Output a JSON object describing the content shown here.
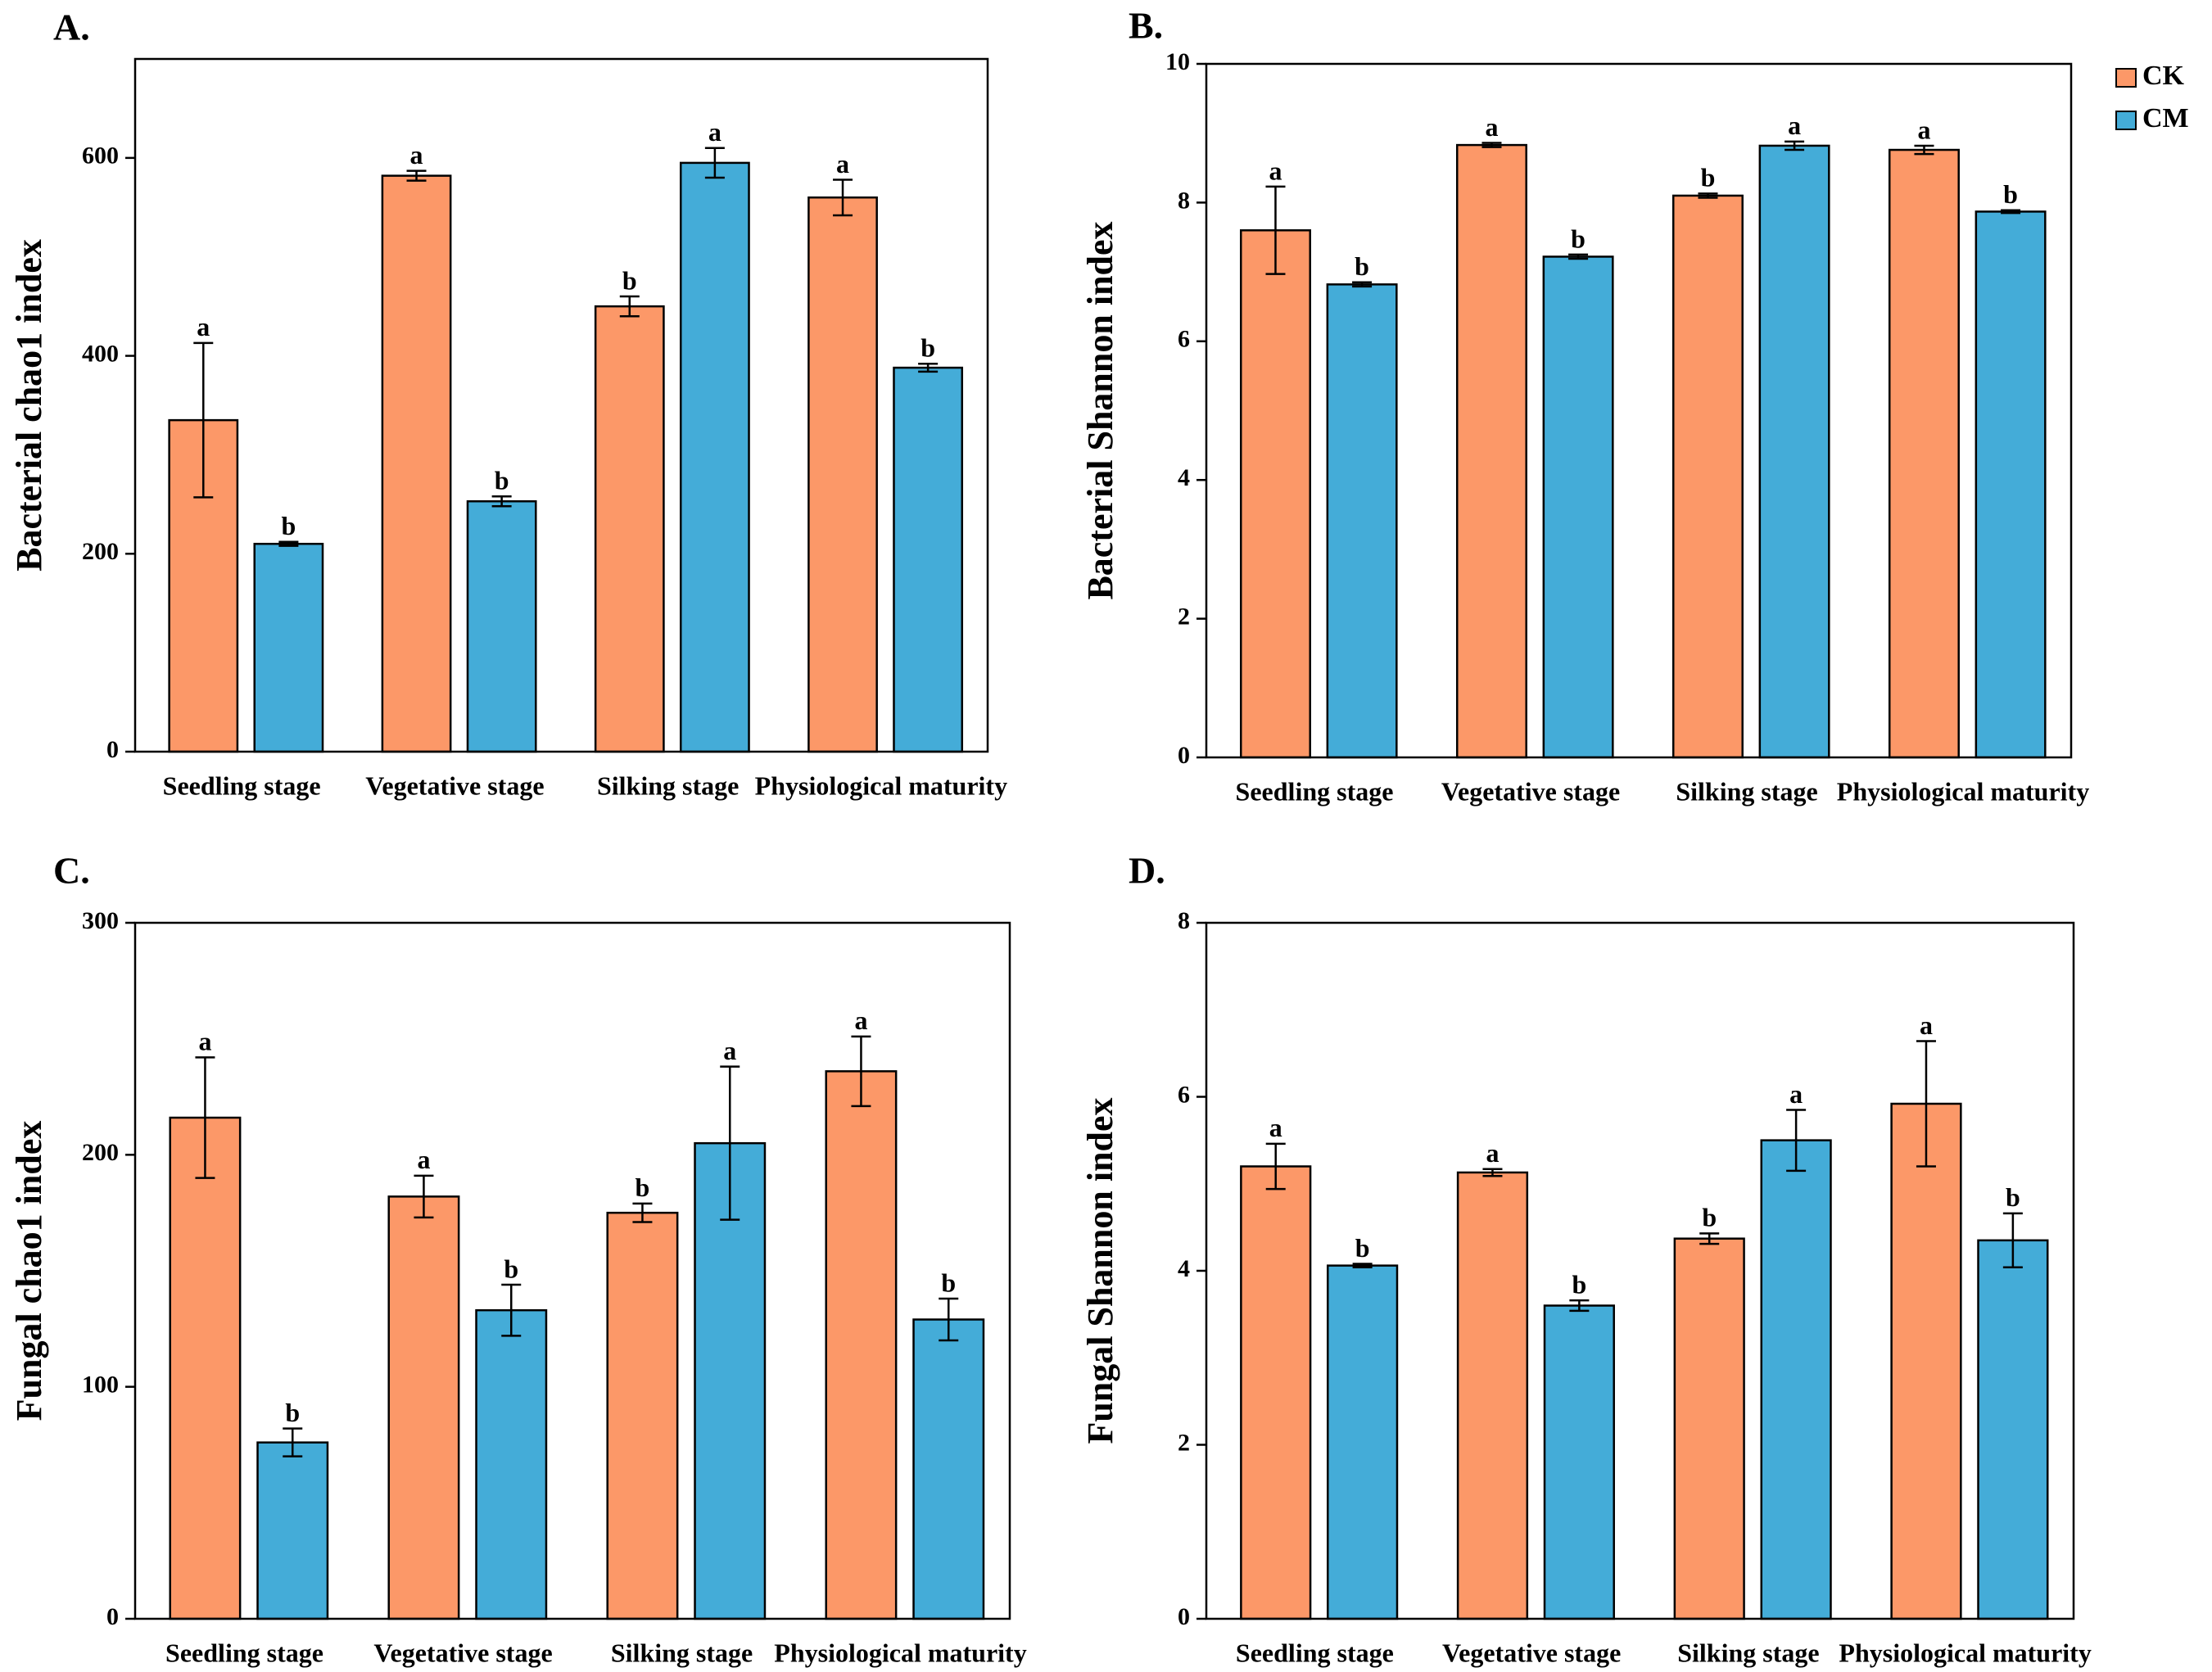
{
  "chart_data": [
    {
      "type": "bar",
      "panel_label": "A.",
      "y_label": "Bacterial chao1 index",
      "categories": [
        "Seedling stage",
        "Vegetative stage",
        "Silking stage",
        "Physiological maturity"
      ],
      "series": [
        {
          "name": "CK",
          "color": "#fc9868",
          "values": [
            335,
            582,
            450,
            560
          ],
          "errors": [
            78,
            5,
            10,
            18
          ],
          "labels": [
            "a",
            "a",
            "b",
            "a"
          ]
        },
        {
          "name": "CM",
          "color": "#44acd8",
          "values": [
            210,
            253,
            595,
            388
          ],
          "errors": [
            2,
            5,
            15,
            4
          ],
          "labels": [
            "b",
            "b",
            "a",
            "b"
          ]
        }
      ],
      "ylim": [
        0,
        700
      ],
      "yticks": [
        0,
        200,
        400,
        600
      ]
    },
    {
      "type": "bar",
      "panel_label": "B.",
      "y_label": "Bacterial Shannon index",
      "categories": [
        "Seedling stage",
        "Vegetative stage",
        "Silking stage",
        "Physiological maturity"
      ],
      "series": [
        {
          "name": "CK",
          "color": "#fc9868",
          "values": [
            7.6,
            8.83,
            8.1,
            8.76
          ],
          "errors": [
            0.63,
            0.03,
            0.03,
            0.06
          ],
          "labels": [
            "a",
            "a",
            "b",
            "a"
          ]
        },
        {
          "name": "CM",
          "color": "#44acd8",
          "values": [
            6.82,
            7.22,
            8.82,
            7.87
          ],
          "errors": [
            0.03,
            0.03,
            0.06,
            0.02
          ],
          "labels": [
            "b",
            "b",
            "a",
            "b"
          ]
        }
      ],
      "ylim": [
        0,
        10
      ],
      "yticks": [
        0,
        2,
        4,
        6,
        8,
        10
      ],
      "legend": "outside-top-right"
    },
    {
      "type": "bar",
      "panel_label": "C.",
      "y_label": "Fungal chao1 index",
      "categories": [
        "Seedling stage",
        "Vegetative stage",
        "Silking stage",
        "Physiological maturity"
      ],
      "series": [
        {
          "name": "CK",
          "color": "#fc9868",
          "values": [
            216,
            182,
            175,
            236
          ],
          "errors": [
            26,
            9,
            4,
            15
          ],
          "labels": [
            "a",
            "a",
            "b",
            "a"
          ]
        },
        {
          "name": "CM",
          "color": "#44acd8",
          "values": [
            76,
            133,
            205,
            129
          ],
          "errors": [
            6,
            11,
            33,
            9
          ],
          "labels": [
            "b",
            "b",
            "a",
            "b"
          ]
        }
      ],
      "ylim": [
        0,
        300
      ],
      "yticks": [
        0,
        100,
        200,
        300
      ]
    },
    {
      "type": "bar",
      "panel_label": "D.",
      "y_label": "Fungal Shannon index",
      "categories": [
        "Seedling stage",
        "Vegetative stage",
        "Silking stage",
        "Physiological maturity"
      ],
      "series": [
        {
          "name": "CK",
          "color": "#fc9868",
          "values": [
            5.2,
            5.13,
            4.37,
            5.92
          ],
          "errors": [
            0.26,
            0.04,
            0.06,
            0.72
          ],
          "labels": [
            "a",
            "a",
            "b",
            "a"
          ]
        },
        {
          "name": "CM",
          "color": "#44acd8",
          "values": [
            4.06,
            3.6,
            5.5,
            4.35
          ],
          "errors": [
            0.02,
            0.06,
            0.35,
            0.31
          ],
          "labels": [
            "b",
            "b",
            "a",
            "b"
          ]
        }
      ],
      "ylim": [
        0,
        8
      ],
      "yticks": [
        0,
        2,
        4,
        6,
        8
      ]
    }
  ]
}
